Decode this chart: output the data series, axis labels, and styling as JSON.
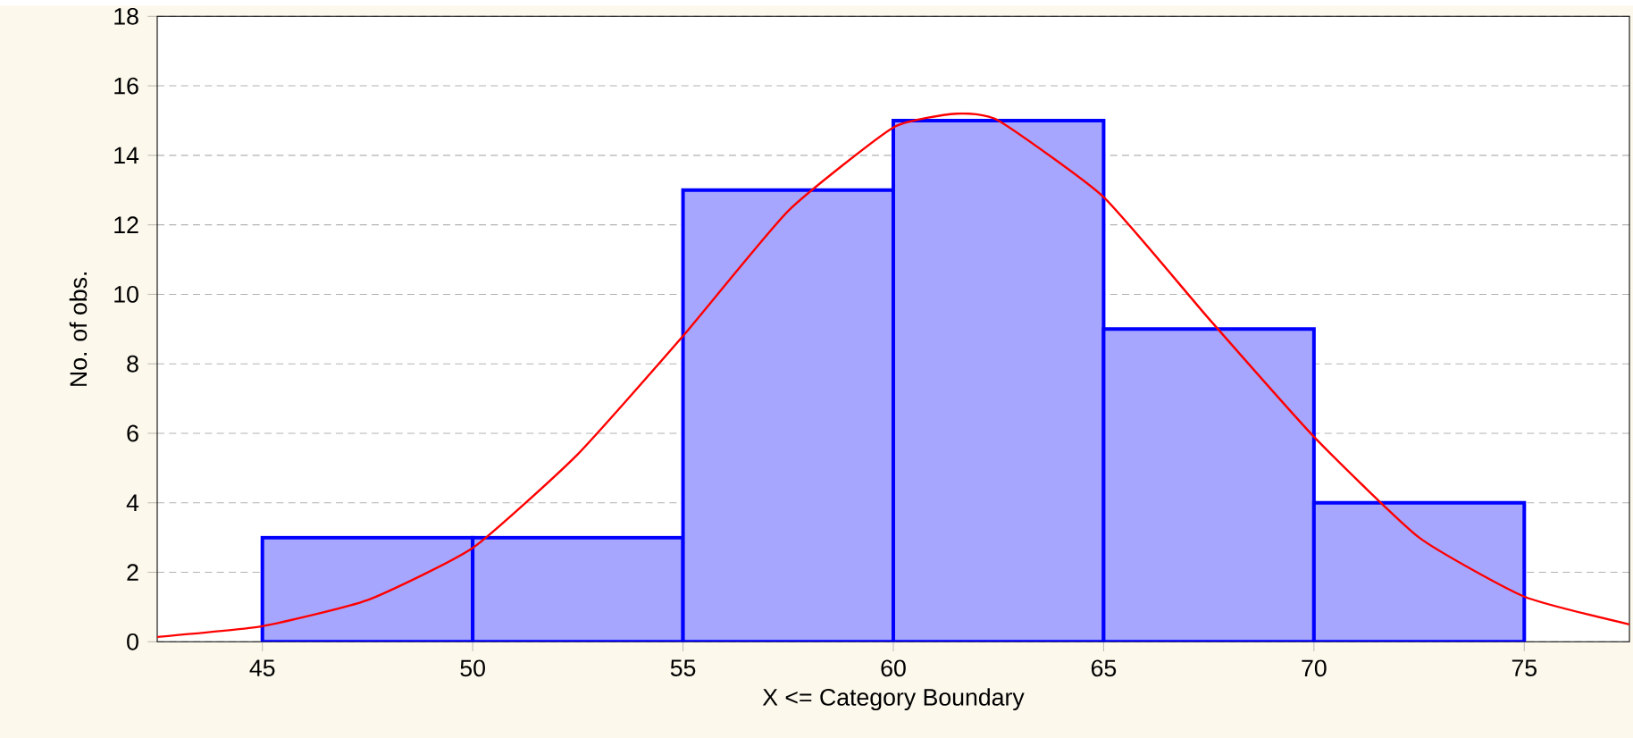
{
  "chart_data": {
    "type": "histogram",
    "xlabel": "X <= Category Boundary",
    "ylabel": "No. of obs.",
    "bins": [
      45,
      50,
      55,
      60,
      65,
      70,
      75
    ],
    "values": [
      3,
      3,
      13,
      15,
      9,
      4
    ],
    "color": "#0000ff",
    "series": [
      {
        "type": "line",
        "color": "#ff0000",
        "x": [
          42.5,
          45,
          47.5,
          50,
          52.5,
          55,
          57.5,
          60,
          61.5,
          62.5,
          65,
          67.5,
          70,
          72.5,
          75,
          77.5
        ],
        "values": [
          0.14,
          0.45,
          1.2,
          2.7,
          5.4,
          8.8,
          12.4,
          14.8,
          15.2,
          15.0,
          12.8,
          9.3,
          5.9,
          3.0,
          1.3,
          0.5
        ]
      }
    ],
    "xlim": [
      42.5,
      77.5
    ],
    "ylim": [
      0,
      18
    ],
    "xticks": [
      45,
      50,
      55,
      60,
      65,
      70,
      75
    ],
    "yticks": [
      0,
      2,
      4,
      6,
      8,
      10,
      12,
      14,
      16,
      18
    ],
    "grid": "y"
  }
}
